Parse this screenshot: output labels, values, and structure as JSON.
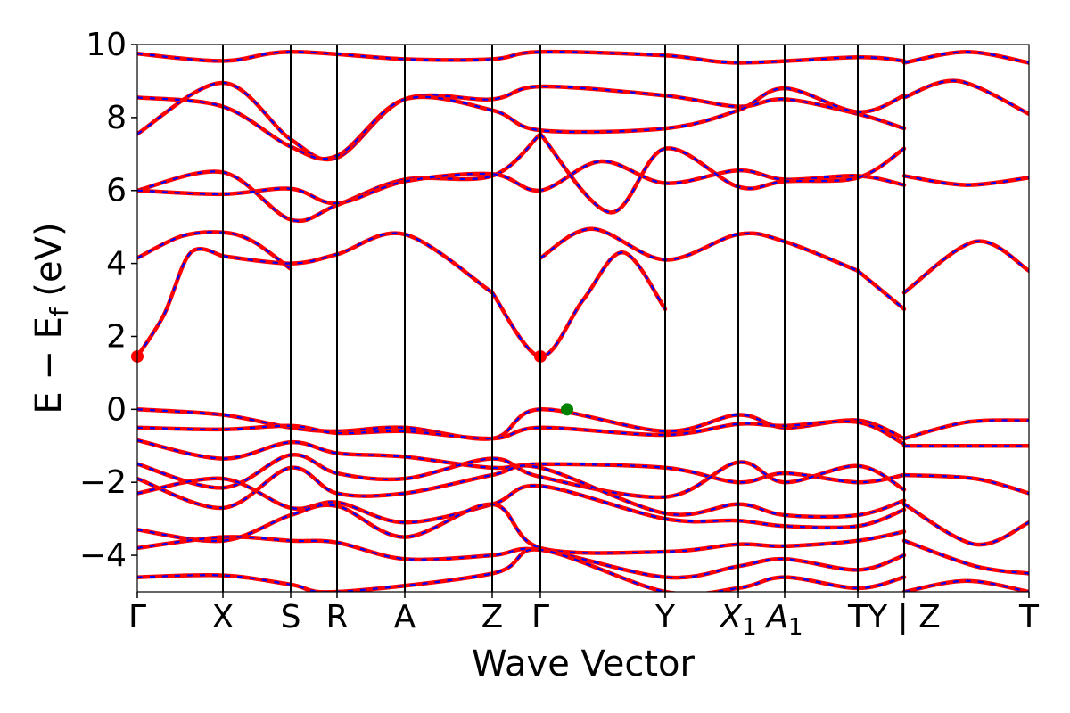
{
  "chart_data": {
    "type": "line",
    "title": "",
    "xlabel": "Wave Vector",
    "ylabel": "E − E_f (eV)",
    "ylabel_parts": {
      "main": "E − E",
      "sub": "f",
      "unit": " (eV)"
    },
    "ylim": [
      -5,
      10
    ],
    "yticks": [
      -4,
      -2,
      0,
      2,
      4,
      6,
      8,
      10
    ],
    "ytick_labels": [
      "−4",
      "−2",
      "0",
      "2",
      "4",
      "6",
      "8",
      "10"
    ],
    "grid": false,
    "k_path": [
      {
        "label": "Γ",
        "k": 0.0
      },
      {
        "label": "X",
        "k": 0.96
      },
      {
        "label": "S",
        "k": 1.72
      },
      {
        "label": "R",
        "k": 2.24
      },
      {
        "label": "A",
        "k": 3.0
      },
      {
        "label": "Z",
        "k": 3.98
      },
      {
        "label": "Γ",
        "k": 4.52
      },
      {
        "label": "Y",
        "k": 5.92
      },
      {
        "label": "X1",
        "k": 6.74,
        "base": "X",
        "sub": "1"
      },
      {
        "label": "A1",
        "k": 7.26,
        "base": "A",
        "sub": "1"
      },
      {
        "label": "T",
        "k": 8.08
      },
      {
        "label": "Y",
        "k": 8.6
      },
      {
        "label": "Z",
        "k": 8.6
      },
      {
        "label": "T",
        "k": 10.0
      }
    ],
    "k_label_text": [
      "Γ",
      "X",
      "S",
      "R",
      "A",
      "Z",
      "Γ",
      "Y",
      "X",
      "A",
      "T",
      "Y | Z",
      "T"
    ],
    "band_colors": {
      "line": "#ff0000",
      "dash": "#0000ff"
    },
    "markers": [
      {
        "name": "cbm",
        "k": 0.0,
        "E": 1.45,
        "color": "#ff0000"
      },
      {
        "name": "cbm",
        "k": 4.52,
        "E": 1.45,
        "color": "#ff0000"
      },
      {
        "name": "vbm",
        "k": 4.82,
        "E": 0.0,
        "color": "#008000"
      }
    ],
    "series": [
      {
        "k": [
          0,
          0.3,
          0.6,
          0.96
        ],
        "E": [
          1.45,
          2.6,
          4.3,
          4.2
        ]
      },
      {
        "k": [
          0,
          0.5,
          0.96,
          1.3,
          1.72
        ],
        "E": [
          4.15,
          4.75,
          4.85,
          4.6,
          3.85
        ]
      },
      {
        "k": [
          0.96,
          1.72,
          2.24,
          3.0,
          3.98
        ],
        "E": [
          4.2,
          4.0,
          4.25,
          4.8,
          3.2
        ]
      },
      {
        "k": [
          3.98,
          4.52,
          5.0,
          5.45,
          5.92
        ],
        "E": [
          3.2,
          1.45,
          3.0,
          4.3,
          2.75
        ]
      },
      {
        "k": [
          4.52,
          5.1,
          5.92,
          6.74,
          7.26,
          8.08
        ],
        "E": [
          4.15,
          4.95,
          4.1,
          4.8,
          4.6,
          3.8
        ]
      },
      {
        "k": [
          8.08,
          8.6
        ],
        "E": [
          3.8,
          2.75
        ]
      },
      {
        "k": [
          8.6,
          9.4,
          10.0
        ],
        "E": [
          3.2,
          4.6,
          3.8
        ]
      },
      {
        "k": [
          0,
          0.96,
          1.72,
          2.24,
          3.0,
          3.98,
          4.52
        ],
        "E": [
          6.0,
          6.5,
          5.2,
          5.6,
          6.3,
          6.4,
          7.55
        ]
      },
      {
        "k": [
          0,
          0.96,
          1.72,
          2.24,
          3.0,
          3.98,
          4.52,
          5.2,
          5.92,
          6.74,
          7.26,
          8.08,
          8.6
        ],
        "E": [
          6.0,
          5.9,
          6.05,
          5.65,
          6.25,
          6.45,
          6.0,
          6.8,
          6.2,
          6.55,
          6.3,
          6.4,
          6.15
        ]
      },
      {
        "k": [
          4.52,
          5.3,
          5.92,
          6.74,
          7.26,
          8.08,
          8.6
        ],
        "E": [
          7.55,
          5.4,
          7.15,
          6.1,
          6.25,
          6.35,
          7.15
        ]
      },
      {
        "k": [
          8.6,
          9.3,
          10.0
        ],
        "E": [
          6.4,
          6.15,
          6.35
        ]
      },
      {
        "k": [
          0,
          0.96,
          1.72,
          2.24,
          3.0,
          3.98,
          4.52,
          5.92,
          6.74,
          7.26,
          8.08,
          8.6
        ],
        "E": [
          7.55,
          8.95,
          7.4,
          6.9,
          8.5,
          8.5,
          8.85,
          8.6,
          8.3,
          8.5,
          8.1,
          7.7
        ]
      },
      {
        "k": [
          0,
          0.96,
          1.72,
          2.24,
          3.0,
          3.98,
          4.52,
          5.92,
          6.74,
          7.26,
          8.08,
          8.6
        ],
        "E": [
          8.55,
          8.3,
          7.2,
          6.95,
          8.5,
          8.2,
          7.65,
          7.7,
          8.2,
          8.8,
          8.15,
          8.6
        ]
      },
      {
        "k": [
          8.6,
          9.2,
          10.0
        ],
        "E": [
          8.55,
          9.0,
          8.1
        ]
      },
      {
        "k": [
          0,
          0.96,
          1.72,
          3.0,
          3.98,
          4.52,
          5.92,
          6.74,
          8.08,
          8.6
        ],
        "E": [
          9.75,
          9.55,
          9.8,
          9.6,
          9.6,
          9.8,
          9.7,
          9.5,
          9.65,
          9.55
        ]
      },
      {
        "k": [
          8.6,
          9.3,
          10.0
        ],
        "E": [
          9.5,
          9.8,
          9.5
        ]
      },
      {
        "k": [
          0,
          0.96,
          1.72,
          2.24,
          3.0,
          3.98,
          4.52,
          5.92,
          6.74,
          7.26,
          8.08,
          8.6
        ],
        "E": [
          0.0,
          -0.15,
          -0.5,
          -0.6,
          -0.5,
          -0.8,
          0.0,
          -0.6,
          -0.15,
          -0.5,
          -0.3,
          -0.8
        ]
      },
      {
        "k": [
          8.6,
          9.3,
          10.0
        ],
        "E": [
          -0.8,
          -0.35,
          -0.3
        ]
      },
      {
        "k": [
          0,
          0.96,
          1.72,
          2.24,
          3.0,
          3.98,
          4.52,
          5.92,
          6.74,
          7.26,
          8.08,
          8.6
        ],
        "E": [
          -0.5,
          -0.55,
          -0.45,
          -0.65,
          -0.6,
          -0.8,
          -0.5,
          -0.7,
          -0.4,
          -0.45,
          -0.35,
          -0.95
        ]
      },
      {
        "k": [
          8.6,
          9.4,
          10.0
        ],
        "E": [
          -1.0,
          -1.0,
          -1.0
        ]
      },
      {
        "k": [
          0,
          0.96,
          1.72,
          2.24,
          3.0,
          3.98,
          4.52,
          5.92,
          6.74,
          7.26,
          8.08,
          8.6
        ],
        "E": [
          -0.85,
          -1.35,
          -0.9,
          -1.2,
          -1.3,
          -1.6,
          -1.5,
          -1.6,
          -2.0,
          -1.75,
          -2.0,
          -1.8
        ]
      },
      {
        "k": [
          0,
          0.96,
          1.72,
          2.24,
          3.0,
          3.98,
          4.52,
          5.92,
          6.74,
          7.26,
          8.08,
          8.6
        ],
        "E": [
          -1.5,
          -2.15,
          -1.25,
          -1.75,
          -1.9,
          -1.35,
          -1.85,
          -2.4,
          -1.45,
          -2.0,
          -1.55,
          -2.2
        ]
      },
      {
        "k": [
          8.6,
          9.4,
          10.0
        ],
        "E": [
          -1.8,
          -1.9,
          -2.3
        ]
      },
      {
        "k": [
          0,
          0.96,
          1.72,
          2.24,
          3.0,
          3.98,
          4.52,
          5.92,
          6.74,
          7.26,
          8.08,
          8.6
        ],
        "E": [
          -1.9,
          -2.7,
          -1.6,
          -2.3,
          -2.3,
          -1.8,
          -1.6,
          -2.85,
          -2.6,
          -2.9,
          -2.9,
          -2.5
        ]
      },
      {
        "k": [
          0,
          0.96,
          1.72,
          2.24,
          3.0,
          3.98,
          4.52,
          5.92,
          6.74,
          7.26,
          8.08,
          8.6
        ],
        "E": [
          -2.3,
          -1.9,
          -2.7,
          -2.55,
          -3.1,
          -2.6,
          -2.1,
          -3.0,
          -3.05,
          -3.2,
          -3.2,
          -2.75
        ]
      },
      {
        "k": [
          8.6,
          9.4,
          10.0
        ],
        "E": [
          -2.6,
          -3.7,
          -3.1
        ]
      },
      {
        "k": [
          0,
          0.96,
          1.72,
          2.24,
          3.0,
          3.98,
          4.52,
          5.92,
          6.74,
          7.26,
          8.08,
          8.6
        ],
        "E": [
          -3.3,
          -3.6,
          -2.9,
          -2.65,
          -3.5,
          -2.6,
          -3.8,
          -3.9,
          -3.7,
          -3.75,
          -3.6,
          -3.35
        ]
      },
      {
        "k": [
          0,
          0.96,
          1.72,
          2.24,
          3.0,
          3.98,
          4.52,
          5.92,
          6.74,
          7.26,
          8.08,
          8.6
        ],
        "E": [
          -3.8,
          -3.5,
          -3.6,
          -3.65,
          -4.1,
          -4.0,
          -3.85,
          -4.6,
          -4.3,
          -4.1,
          -4.4,
          -4.0
        ]
      },
      {
        "k": [
          8.6,
          9.4,
          10.0
        ],
        "E": [
          -3.6,
          -4.3,
          -4.5
        ]
      },
      {
        "k": [
          0,
          0.96,
          1.72,
          2.24,
          3.98,
          4.52,
          5.92,
          6.74,
          7.26,
          8.08,
          8.6
        ],
        "E": [
          -4.6,
          -4.55,
          -4.8,
          -5.0,
          -4.5,
          -3.85,
          -5.0,
          -4.9,
          -4.6,
          -4.9,
          -4.6
        ]
      },
      {
        "k": [
          8.6,
          9.3,
          10.0
        ],
        "E": [
          -5.0,
          -4.7,
          -5.0
        ]
      }
    ]
  }
}
